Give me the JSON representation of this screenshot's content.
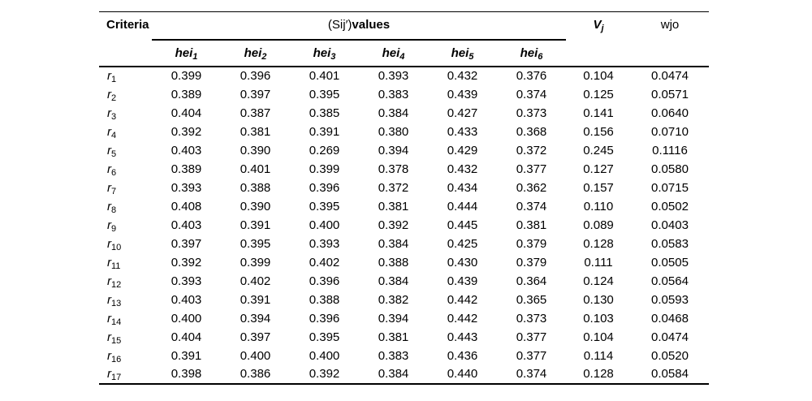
{
  "table": {
    "header": {
      "criteria": "Criteria",
      "spanner_normal": "(Sij′)",
      "spanner_bold": "values",
      "vj": {
        "base": "V",
        "sub": "j"
      },
      "wjo": "wjo",
      "sub_columns": [
        {
          "base": "hei",
          "sub": "1"
        },
        {
          "base": "hei",
          "sub": "2"
        },
        {
          "base": "hei",
          "sub": "3"
        },
        {
          "base": "hei",
          "sub": "4"
        },
        {
          "base": "hei",
          "sub": "5"
        },
        {
          "base": "hei",
          "sub": "6"
        }
      ]
    },
    "rows": [
      {
        "label": {
          "base": "r",
          "sub": "1"
        },
        "values": [
          "0.399",
          "0.396",
          "0.401",
          "0.393",
          "0.432",
          "0.376",
          "0.104",
          "0.0474"
        ]
      },
      {
        "label": {
          "base": "r",
          "sub": "2"
        },
        "values": [
          "0.389",
          "0.397",
          "0.395",
          "0.383",
          "0.439",
          "0.374",
          "0.125",
          "0.0571"
        ]
      },
      {
        "label": {
          "base": "r",
          "sub": "3"
        },
        "values": [
          "0.404",
          "0.387",
          "0.385",
          "0.384",
          "0.427",
          "0.373",
          "0.141",
          "0.0640"
        ]
      },
      {
        "label": {
          "base": "r",
          "sub": "4"
        },
        "values": [
          "0.392",
          "0.381",
          "0.391",
          "0.380",
          "0.433",
          "0.368",
          "0.156",
          "0.0710"
        ]
      },
      {
        "label": {
          "base": "r",
          "sub": "5"
        },
        "values": [
          "0.403",
          "0.390",
          "0.269",
          "0.394",
          "0.429",
          "0.372",
          "0.245",
          "0.1116"
        ]
      },
      {
        "label": {
          "base": "r",
          "sub": "6"
        },
        "values": [
          "0.389",
          "0.401",
          "0.399",
          "0.378",
          "0.432",
          "0.377",
          "0.127",
          "0.0580"
        ]
      },
      {
        "label": {
          "base": "r",
          "sub": "7"
        },
        "values": [
          "0.393",
          "0.388",
          "0.396",
          "0.372",
          "0.434",
          "0.362",
          "0.157",
          "0.0715"
        ]
      },
      {
        "label": {
          "base": "r",
          "sub": "8"
        },
        "values": [
          "0.408",
          "0.390",
          "0.395",
          "0.381",
          "0.444",
          "0.374",
          "0.110",
          "0.0502"
        ]
      },
      {
        "label": {
          "base": "r",
          "sub": "9"
        },
        "values": [
          "0.403",
          "0.391",
          "0.400",
          "0.392",
          "0.445",
          "0.381",
          "0.089",
          "0.0403"
        ]
      },
      {
        "label": {
          "base": "r",
          "sub": "10"
        },
        "values": [
          "0.397",
          "0.395",
          "0.393",
          "0.384",
          "0.425",
          "0.379",
          "0.128",
          "0.0583"
        ]
      },
      {
        "label": {
          "base": "r",
          "sub": "11"
        },
        "values": [
          "0.392",
          "0.399",
          "0.402",
          "0.388",
          "0.430",
          "0.379",
          "0.111",
          "0.0505"
        ]
      },
      {
        "label": {
          "base": "r",
          "sub": "12"
        },
        "values": [
          "0.393",
          "0.402",
          "0.396",
          "0.384",
          "0.439",
          "0.364",
          "0.124",
          "0.0564"
        ]
      },
      {
        "label": {
          "base": "r",
          "sub": "13"
        },
        "values": [
          "0.403",
          "0.391",
          "0.388",
          "0.382",
          "0.442",
          "0.365",
          "0.130",
          "0.0593"
        ]
      },
      {
        "label": {
          "base": "r",
          "sub": "14"
        },
        "values": [
          "0.400",
          "0.394",
          "0.396",
          "0.394",
          "0.442",
          "0.373",
          "0.103",
          "0.0468"
        ]
      },
      {
        "label": {
          "base": "r",
          "sub": "15"
        },
        "values": [
          "0.404",
          "0.397",
          "0.395",
          "0.381",
          "0.443",
          "0.377",
          "0.104",
          "0.0474"
        ]
      },
      {
        "label": {
          "base": "r",
          "sub": "16"
        },
        "values": [
          "0.391",
          "0.400",
          "0.400",
          "0.383",
          "0.436",
          "0.377",
          "0.114",
          "0.0520"
        ]
      },
      {
        "label": {
          "base": "r",
          "sub": "17"
        },
        "values": [
          "0.398",
          "0.386",
          "0.392",
          "0.384",
          "0.440",
          "0.374",
          "0.128",
          "0.0584"
        ]
      }
    ]
  }
}
